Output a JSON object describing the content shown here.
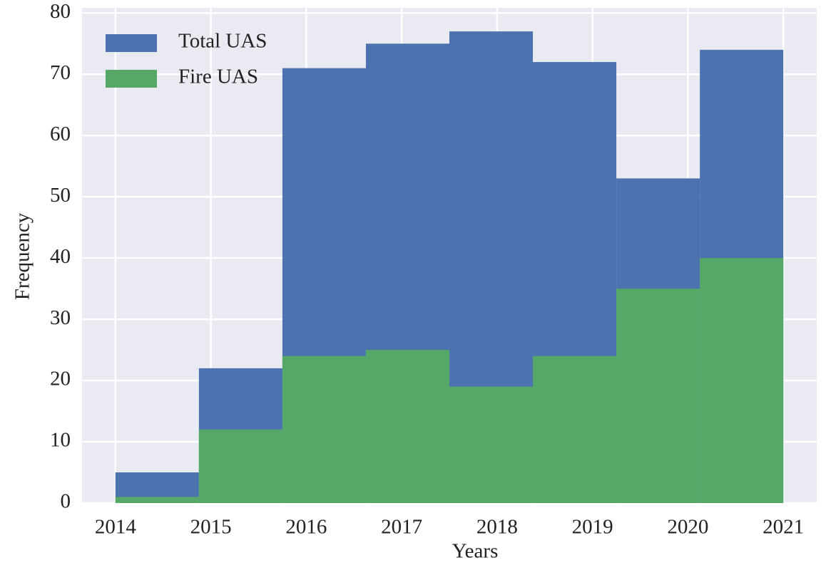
{
  "chart_data": {
    "type": "histogram",
    "xlabel": "Years",
    "ylabel": "Frequency",
    "bins": [
      2014,
      2014.875,
      2015.75,
      2016.625,
      2017.5,
      2018.375,
      2019.25,
      2020.125,
      2021
    ],
    "series": [
      {
        "name": "Total UAS",
        "color": "#4c72b0",
        "values": [
          5,
          22,
          71,
          75,
          77,
          72,
          53,
          74
        ]
      },
      {
        "name": "Fire UAS",
        "color": "#55a868",
        "values": [
          1,
          12,
          24,
          25,
          19,
          24,
          35,
          40
        ]
      }
    ],
    "xlim": [
      2013.65,
      2021.35
    ],
    "xticks": [
      2014,
      2015,
      2016,
      2017,
      2018,
      2019,
      2020,
      2021
    ],
    "ylim": [
      0,
      80.85
    ],
    "yticks": [
      0,
      10,
      20,
      30,
      40,
      50,
      60,
      70,
      80
    ],
    "grid": true,
    "legend": "upper left"
  }
}
